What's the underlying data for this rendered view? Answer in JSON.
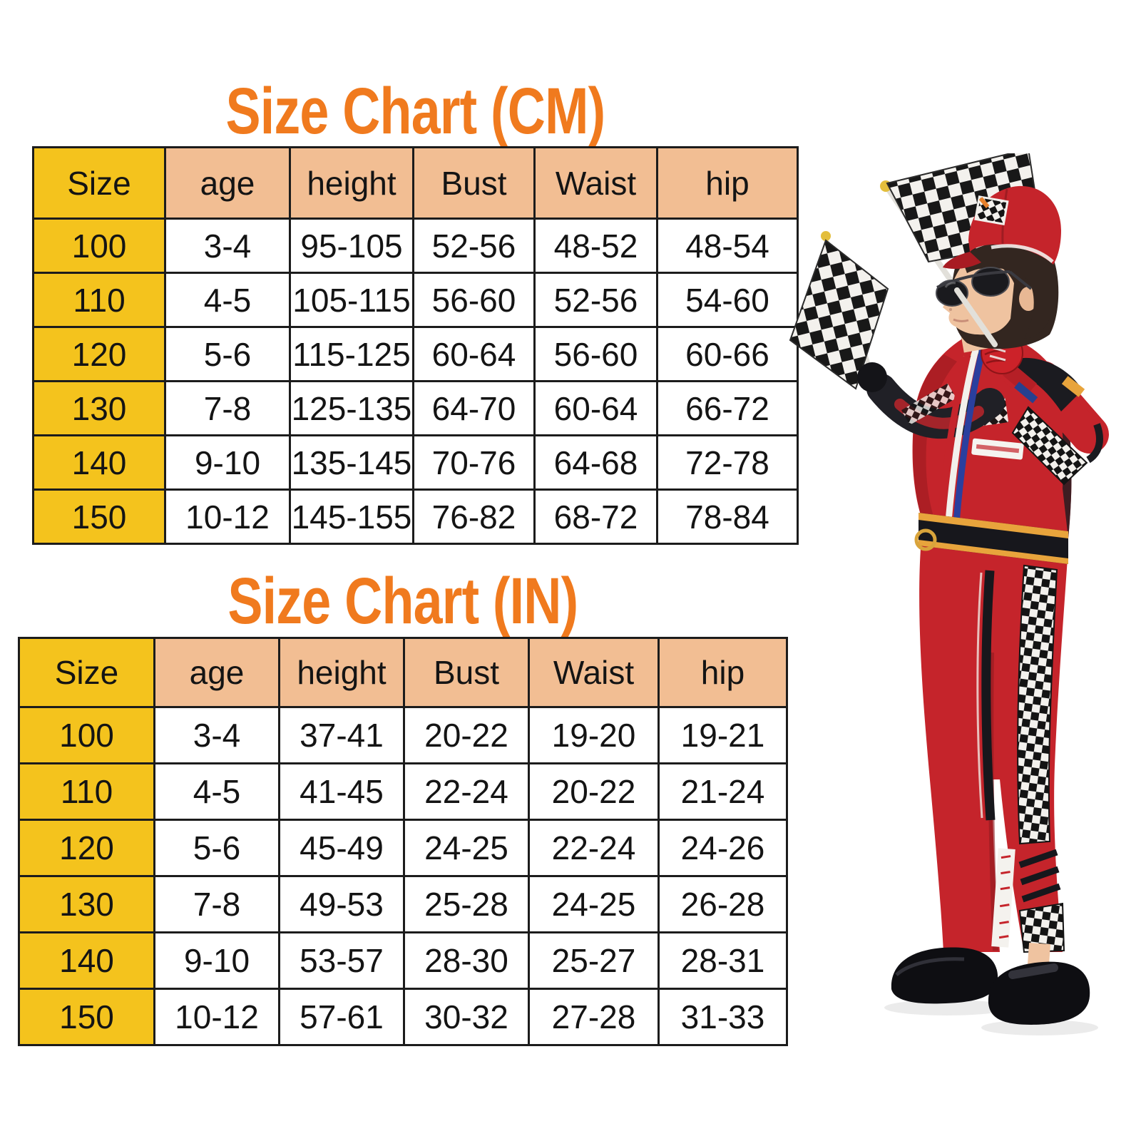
{
  "chart_data": [
    {
      "type": "table",
      "title": "Size Chart (CM)",
      "unit": "cm",
      "columns": [
        "Size",
        "age",
        "height",
        "Bust",
        "Waist",
        "hip"
      ],
      "rows": [
        [
          "100",
          "3-4",
          "95-105",
          "52-56",
          "48-52",
          "48-54"
        ],
        [
          "110",
          "4-5",
          "105-115",
          "56-60",
          "52-56",
          "54-60"
        ],
        [
          "120",
          "5-6",
          "115-125",
          "60-64",
          "56-60",
          "60-66"
        ],
        [
          "130",
          "7-8",
          "125-135",
          "64-70",
          "60-64",
          "66-72"
        ],
        [
          "140",
          "9-10",
          "135-145",
          "70-76",
          "64-68",
          "72-78"
        ],
        [
          "150",
          "10-12",
          "145-155",
          "76-82",
          "68-72",
          "78-84"
        ]
      ]
    },
    {
      "type": "table",
      "title": "Size Chart (IN)",
      "unit": "in",
      "columns": [
        "Size",
        "age",
        "height",
        "Bust",
        "Waist",
        "hip"
      ],
      "rows": [
        [
          "100",
          "3-4",
          "37-41",
          "20-22",
          "19-20",
          "19-21"
        ],
        [
          "110",
          "4-5",
          "41-45",
          "22-24",
          "20-22",
          "21-24"
        ],
        [
          "120",
          "5-6",
          "45-49",
          "24-25",
          "22-24",
          "24-26"
        ],
        [
          "130",
          "7-8",
          "49-53",
          "25-28",
          "24-25",
          "26-28"
        ],
        [
          "140",
          "9-10",
          "53-57",
          "28-30",
          "25-27",
          "28-31"
        ],
        [
          "150",
          "10-12",
          "57-61",
          "30-32",
          "27-28",
          "31-33"
        ]
      ]
    }
  ],
  "photo": {
    "subject": "child in red racing driver costume with cap, sunglasses, gold medal and two checkered flags"
  },
  "colors": {
    "title_orange": "#F07A1E",
    "header_yellow": "#F4C31D",
    "header_peach": "#F2BE93",
    "border_dark": "#1c1c1c",
    "suit_red": "#C5242B"
  }
}
